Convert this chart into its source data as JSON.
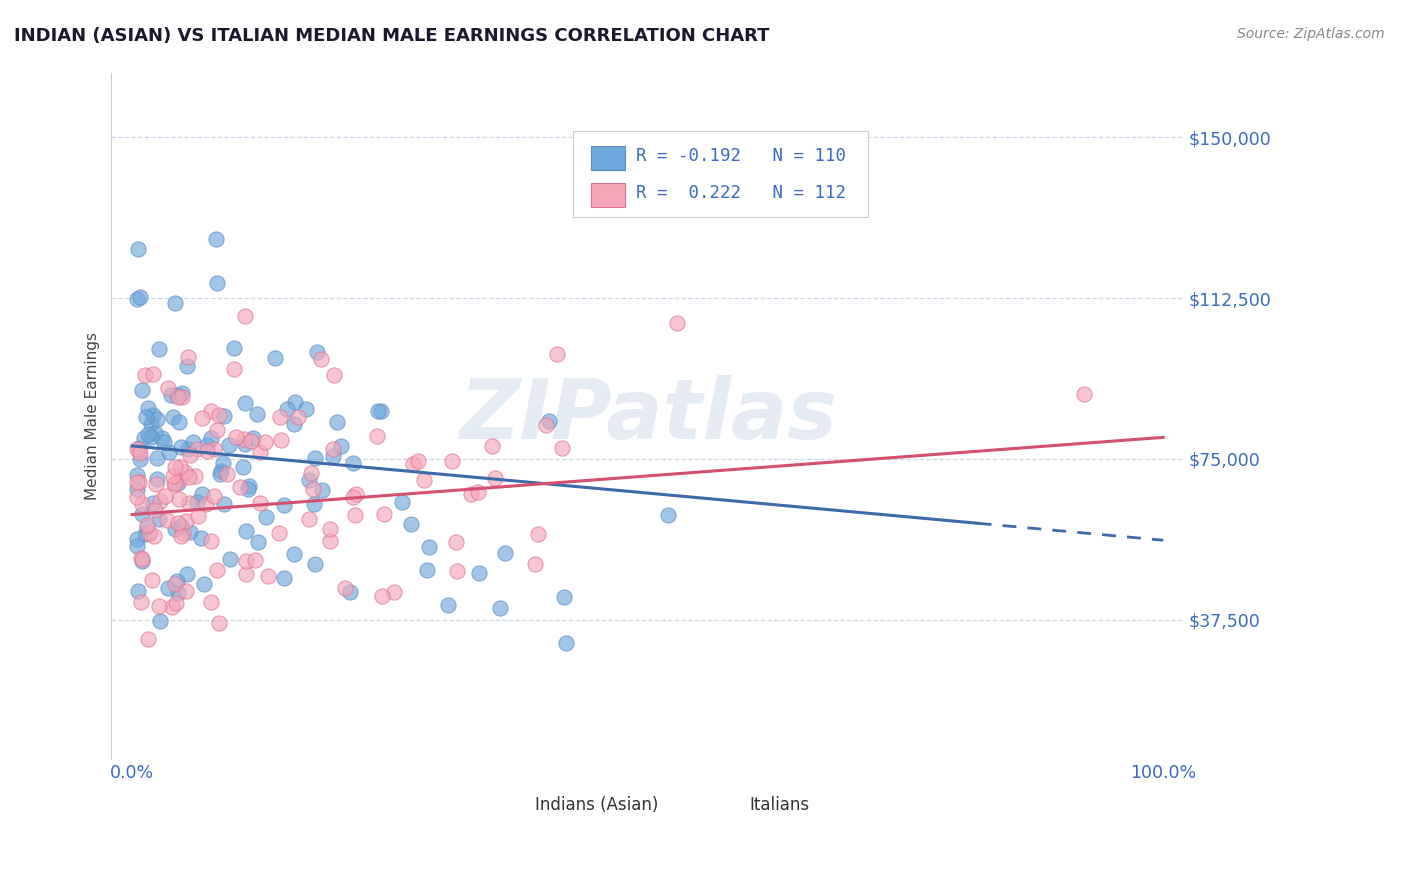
{
  "title": "INDIAN (ASIAN) VS ITALIAN MEDIAN MALE EARNINGS CORRELATION CHART",
  "source_text": "Source: ZipAtlas.com",
  "ylabel": "Median Male Earnings",
  "yticks": [
    0,
    37500,
    75000,
    112500,
    150000
  ],
  "ytick_labels": [
    "",
    "$37,500",
    "$75,000",
    "$112,500",
    "$150,000"
  ],
  "xlim": [
    -0.02,
    1.02
  ],
  "ylim": [
    5000,
    165000
  ],
  "xtick_labels": [
    "0.0%",
    "100.0%"
  ],
  "blue_color": "#6fa8dc",
  "blue_edge": "#5b8ec4",
  "pink_color": "#f4a7b9",
  "pink_edge": "#e07090",
  "blue_line_color": "#3d6aa8",
  "pink_line_color": "#d45070",
  "blue_R": -0.192,
  "blue_N": 110,
  "pink_R": 0.222,
  "pink_N": 112,
  "legend_label_indians": "Indians (Asian)",
  "legend_label_italians": "Italians",
  "watermark": "ZIPatlas",
  "background_color": "#ffffff",
  "grid_color": "#c8d8ea",
  "title_color": "#1a1a2e",
  "source_color": "#888888",
  "axis_text_color": "#3a6bbf",
  "ylabel_color": "#444444",
  "dot_size": 120,
  "dot_alpha": 0.65,
  "blue_intercept": 78000,
  "blue_slope": -22000,
  "pink_intercept": 62000,
  "pink_slope": 18000
}
